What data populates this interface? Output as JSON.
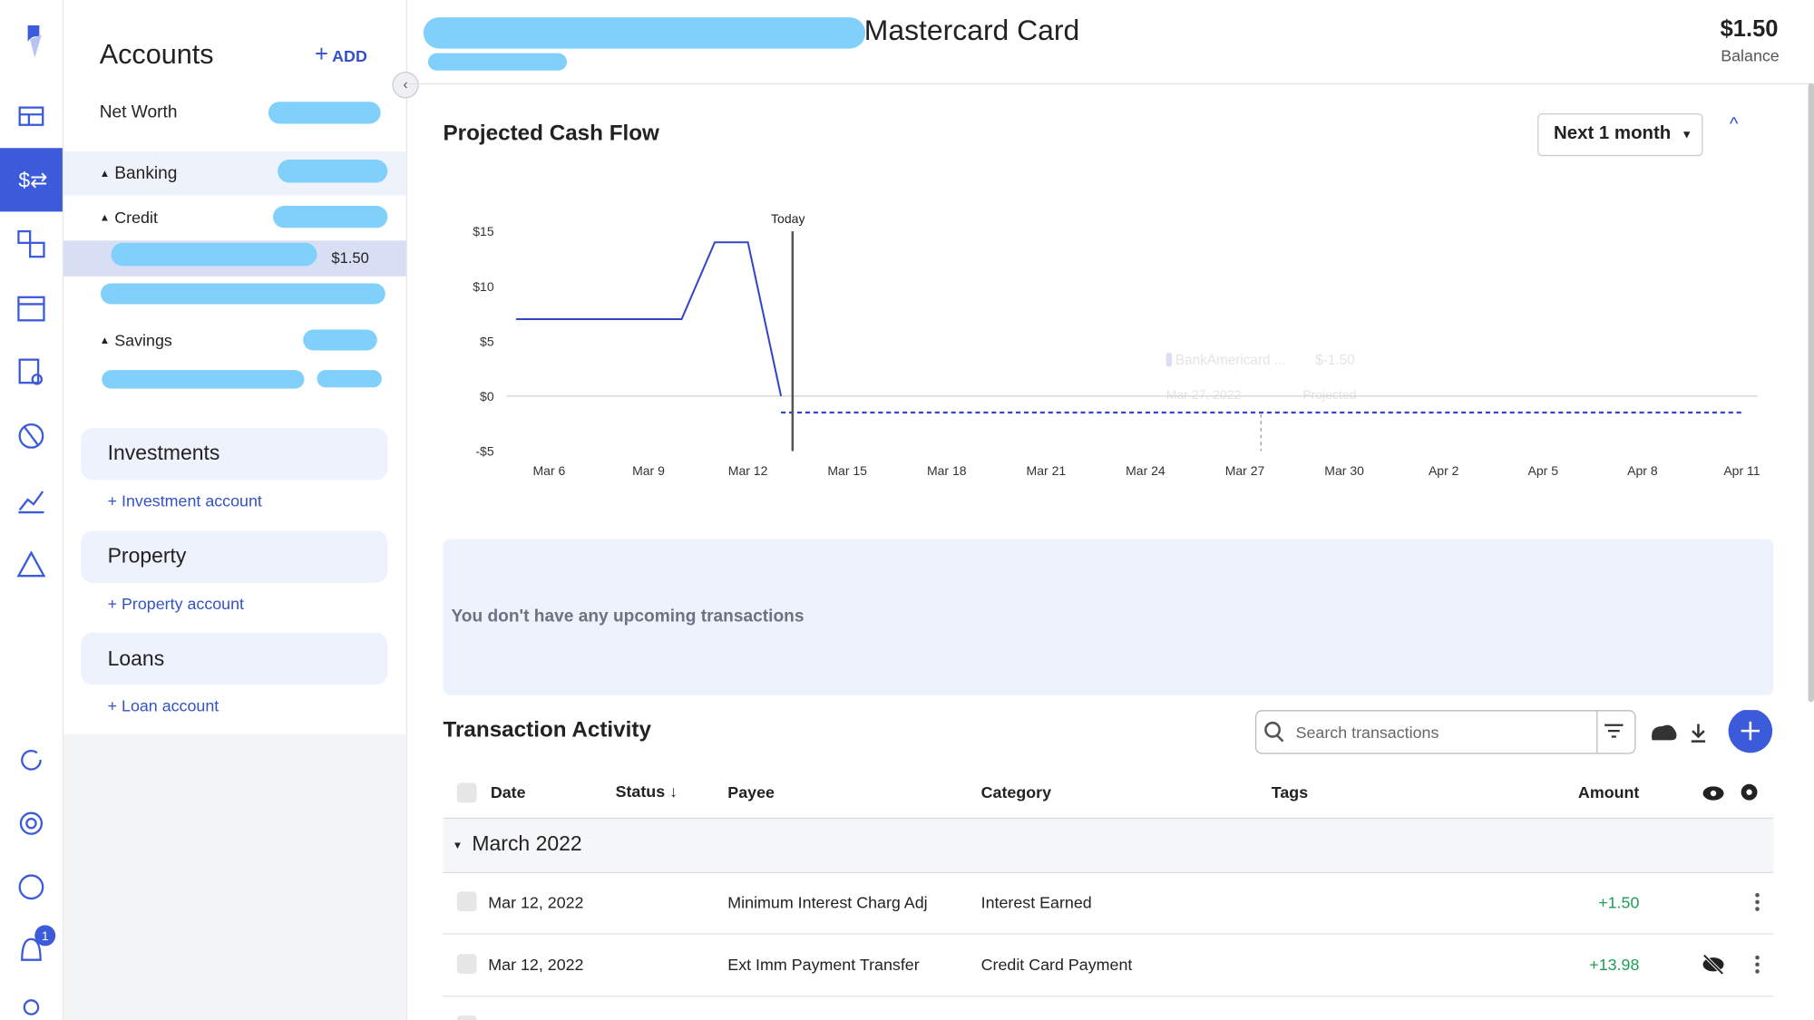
{
  "nav": {
    "badge": "1"
  },
  "sidebar": {
    "title": "Accounts",
    "add": "ADD",
    "net_worth": "Net Worth",
    "banking": "Banking",
    "credit": "Credit",
    "credit_account_balance": "$1.50",
    "savings": "Savings",
    "sections": [
      {
        "title": "Investments",
        "link": "+ Investment account"
      },
      {
        "title": "Property",
        "link": "+ Property account"
      },
      {
        "title": "Loans",
        "link": "+ Loan account"
      }
    ]
  },
  "header": {
    "title": "Mastercard Card",
    "balance": "$1.50",
    "balance_label": "Balance"
  },
  "cash_flow": {
    "title": "Projected Cash Flow",
    "range": "Next 1 month",
    "chart": {
      "type": "line",
      "annotation": "Today",
      "categories": [
        null,
        "Mar 6",
        null,
        null,
        "Mar 9",
        null,
        null,
        "Mar 12",
        null,
        null,
        "Mar 15",
        null,
        null,
        "Mar 18",
        null,
        null,
        "Mar 21",
        null,
        null,
        "Mar 24",
        null,
        null,
        "Mar 27",
        null,
        null,
        "Mar 30",
        null,
        null,
        "Apr 2",
        null,
        null,
        "Apr 5",
        null,
        null,
        "Apr 8",
        null,
        null,
        "Apr 11"
      ],
      "series": [
        {
          "color": "#3346c8",
          "style": "solid",
          "values": [
            7,
            7,
            7,
            7,
            7,
            7,
            14,
            14,
            0,
            null,
            null,
            null,
            null,
            null,
            null,
            null,
            null,
            null,
            null,
            null,
            null,
            null,
            null,
            null,
            null,
            null,
            null,
            null,
            null,
            null,
            null,
            null,
            null,
            null,
            null,
            null,
            null,
            null
          ]
        },
        {
          "color": "#3346c8",
          "style": "dashed",
          "values": [
            null,
            null,
            null,
            null,
            null,
            null,
            null,
            null,
            -1.5,
            -1.5,
            -1.5,
            -1.5,
            -1.5,
            -1.5,
            -1.5,
            -1.5,
            -1.5,
            -1.5,
            -1.5,
            -1.5,
            -1.5,
            -1.5,
            -1.5,
            -1.5,
            -1.5,
            -1.5,
            -1.5,
            -1.5,
            -1.5,
            -1.5,
            -1.5,
            -1.5,
            -1.5,
            -1.5,
            -1.5,
            -1.5,
            -1.5,
            -1.5
          ]
        }
      ],
      "ylim": [
        -5,
        15
      ],
      "yticks": [
        {
          "value": -5,
          "label": "-$5"
        },
        {
          "value": 0,
          "label": "$0"
        },
        {
          "value": 5,
          "label": "$5"
        },
        {
          "value": 10,
          "label": "$10"
        },
        {
          "value": 15,
          "label": "$15"
        }
      ],
      "zero_line": true
    },
    "tooltip": {
      "name": "BankAmericard ...",
      "value": "$-1.50",
      "date": "Mar 27, 2022",
      "status": "Projected"
    }
  },
  "upcoming": {
    "empty": "You don't have any upcoming transactions"
  },
  "transactions": {
    "title": "Transaction Activity",
    "search_placeholder": "Search transactions",
    "columns": {
      "date": "Date",
      "status": "Status",
      "payee": "Payee",
      "category": "Category",
      "tags": "Tags",
      "amount": "Amount"
    },
    "group": "March 2022",
    "rows": [
      {
        "date": "Mar 12, 2022",
        "payee": "Minimum Interest Charg Adj",
        "category": "Interest Earned",
        "amount": "+1.50"
      },
      {
        "date": "Mar 12, 2022",
        "payee": "Ext Imm Payment Transfer",
        "category": "Credit Card Payment",
        "amount": "+13.98"
      }
    ]
  }
}
